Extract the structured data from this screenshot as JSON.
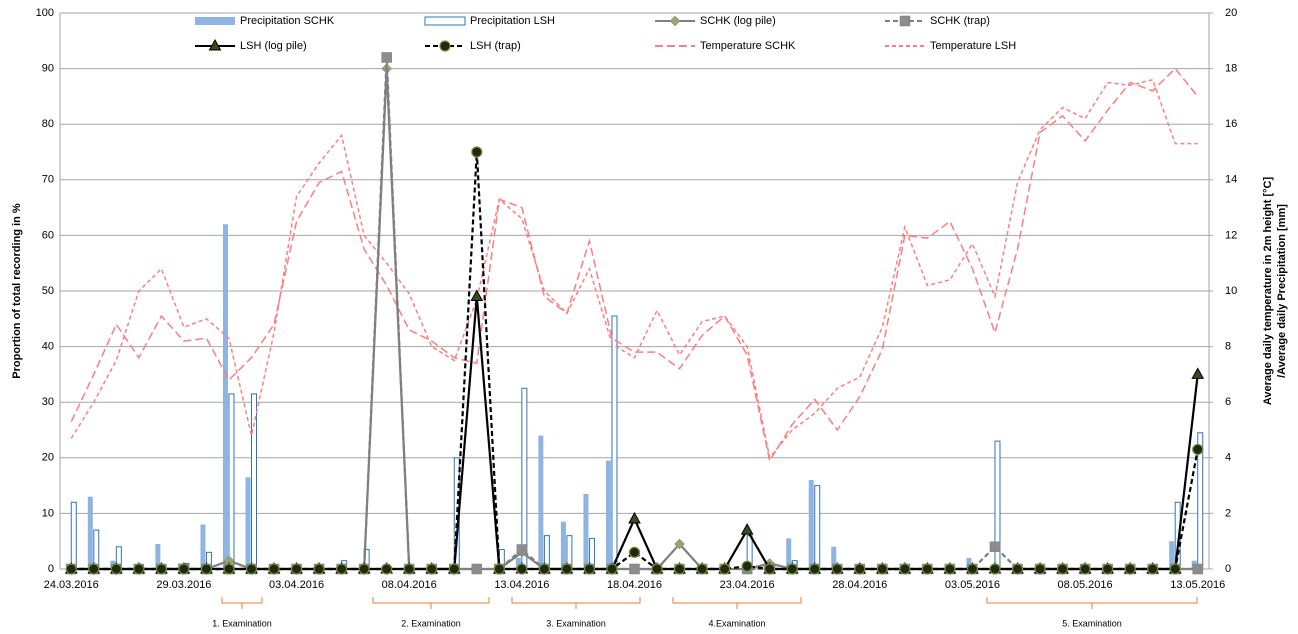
{
  "chart_data": {
    "type": "combo",
    "categories": [
      "24.03.2016",
      null,
      null,
      null,
      null,
      "29.03.2016",
      null,
      null,
      null,
      null,
      "03.04.2016",
      null,
      null,
      null,
      null,
      "08.04.2016",
      null,
      null,
      null,
      null,
      "13.04.2016",
      null,
      null,
      null,
      null,
      "18.04.2016",
      null,
      null,
      null,
      null,
      "23.04.2016",
      null,
      null,
      null,
      null,
      "28.04.2016",
      null,
      null,
      null,
      null,
      "03.05.2016",
      null,
      null,
      null,
      null,
      "08.05.2016",
      null,
      null,
      null,
      null,
      "13.05.2016"
    ],
    "ylabel": "Proportion of total recording in %",
    "y2label": [
      "Average daily temperature in 2m height [°C]",
      "/Average daily Precipitation [mm]"
    ],
    "ylim": [
      0,
      100
    ],
    "yticks": [
      0,
      10,
      20,
      30,
      40,
      50,
      60,
      70,
      80,
      90,
      100
    ],
    "y2lim": [
      0,
      20
    ],
    "y2ticks": [
      0,
      2,
      4,
      6,
      8,
      10,
      12,
      14,
      16,
      18,
      20
    ],
    "grid": true,
    "legend": "top",
    "annotations": [
      "1. Examination",
      "2. Examination",
      "3. Examination",
      "4.Examination",
      "5. Examination"
    ],
    "series": [
      {
        "name": "Precipitation SCHK",
        "type": "bar",
        "axis": "y2",
        "color": "#8db4e2",
        "fill": true,
        "values": [
          0,
          2.6,
          0.3,
          0,
          0.9,
          0.2,
          1.6,
          12.4,
          3.3,
          0,
          0,
          0,
          0,
          0,
          0,
          0,
          0,
          0,
          0,
          0,
          0.4,
          4.8,
          1.7,
          2.7,
          3.9,
          0,
          0,
          0,
          0,
          0,
          0,
          0.2,
          1.1,
          3.2,
          0.8,
          0,
          0,
          0,
          0,
          0,
          0.4,
          0,
          0,
          0,
          0,
          0,
          0,
          0,
          0,
          1.0,
          0.3
        ]
      },
      {
        "name": "Precipitation LSH",
        "type": "bar",
        "axis": "y2",
        "color": "#2e75b6",
        "fill": false,
        "values": [
          2.4,
          1.4,
          0.8,
          0,
          0,
          0.2,
          0.6,
          6.3,
          6.3,
          0,
          0,
          0,
          0.3,
          0.7,
          0,
          0,
          0,
          4.0,
          0,
          0.7,
          6.5,
          1.2,
          1.2,
          1.1,
          9.1,
          0,
          0,
          0,
          0,
          0,
          1.2,
          0.1,
          0.3,
          3.0,
          0,
          0,
          0,
          0,
          0,
          0,
          0,
          4.6,
          0,
          0,
          0,
          0,
          0,
          0,
          0,
          2.4,
          4.9
        ]
      },
      {
        "name": "SCHK (log pile)",
        "type": "line",
        "axis": "y",
        "color": "#7f7f7f",
        "marker": "diamond",
        "markerFill": "#9ea36e",
        "dash": false,
        "values": [
          0,
          0,
          0,
          0,
          0,
          0,
          0,
          1.5,
          0,
          0,
          0,
          0,
          0,
          0,
          90,
          0,
          0,
          0,
          0,
          0,
          3,
          0,
          0,
          0,
          0,
          0,
          0,
          4.5,
          0,
          0,
          0,
          1,
          0,
          0,
          0,
          0,
          0,
          0,
          0,
          0,
          0,
          0,
          0,
          0,
          0,
          0,
          0,
          0,
          0,
          0,
          0
        ]
      },
      {
        "name": "SCHK (trap)",
        "type": "line",
        "axis": "y",
        "color": "#7f7f7f",
        "marker": "square",
        "markerFill": "#8c8c8c",
        "dash": true,
        "values": [
          0,
          0,
          0,
          0,
          0,
          0,
          0,
          0,
          0,
          0,
          0,
          0,
          0,
          0,
          92,
          0,
          0,
          0,
          0,
          0,
          3.5,
          0,
          0,
          0,
          0,
          0,
          0,
          0,
          0,
          0,
          0,
          0,
          0,
          0,
          0,
          0,
          0,
          0,
          0,
          0,
          0,
          4,
          0,
          0,
          0,
          0,
          0,
          0,
          0,
          0,
          0
        ]
      },
      {
        "name": "LSH (log pile)",
        "type": "line",
        "axis": "y",
        "color": "#000000",
        "marker": "triangle",
        "markerFill": "#3d4a1e",
        "dash": false,
        "values": [
          0,
          0,
          0,
          0,
          0,
          0,
          0,
          0,
          0,
          0,
          0,
          0,
          0,
          0,
          0,
          0,
          0,
          0,
          49,
          0,
          0,
          0,
          0,
          0,
          0,
          9,
          0,
          0,
          0,
          0,
          7,
          0,
          0,
          0,
          0,
          0,
          0,
          0,
          0,
          0,
          0,
          0,
          0,
          0,
          0,
          0,
          0,
          0,
          0,
          0,
          35
        ]
      },
      {
        "name": "LSH (trap)",
        "type": "line",
        "axis": "y",
        "color": "#000000",
        "marker": "circle",
        "markerFill": "#1f2a12",
        "dash": true,
        "values": [
          0,
          0,
          0,
          0,
          0,
          0,
          0,
          0,
          0,
          0,
          0,
          0,
          0,
          0,
          0,
          0,
          0,
          0,
          75,
          0,
          0,
          0,
          0,
          0,
          0,
          3,
          0,
          0,
          0,
          0,
          0.5,
          0,
          0,
          0,
          0,
          0,
          0,
          0,
          0,
          0,
          0,
          0,
          0,
          0,
          0,
          0,
          0,
          0,
          0,
          0,
          21.5
        ]
      },
      {
        "name": "Temperature SCHK",
        "type": "line",
        "axis": "y2",
        "color": "#ff7c80",
        "dash": "long",
        "values": [
          5.3,
          7.0,
          8.8,
          7.6,
          9.1,
          8.2,
          8.3,
          6.8,
          7.6,
          8.8,
          12.5,
          13.9,
          14.3,
          11.5,
          10.2,
          8.6,
          8.2,
          7.6,
          7.4,
          13.3,
          13.0,
          9.8,
          9.2,
          11.8,
          8.3,
          7.8,
          7.8,
          7.2,
          8.4,
          9.1,
          7.7,
          3.9,
          5.2,
          6.1,
          5.0,
          6.2,
          7.9,
          12.0,
          11.9,
          12.5,
          10.8,
          8.5,
          11.5,
          15.7,
          16.3,
          15.4,
          16.5,
          17.5,
          17.2,
          18.0,
          17.0
        ]
      },
      {
        "name": "Temperature LSH",
        "type": "line",
        "axis": "y2",
        "color": "#ff7c80",
        "dash": "short",
        "values": [
          4.7,
          6.0,
          7.5,
          10.0,
          10.8,
          8.7,
          9.0,
          8.3,
          4.8,
          8.5,
          13.4,
          14.6,
          15.6,
          12.0,
          11.0,
          9.9,
          8.0,
          7.5,
          9.7,
          13.3,
          12.6,
          10.0,
          9.2,
          10.8,
          8.1,
          7.6,
          9.3,
          7.7,
          8.9,
          9.1,
          8.0,
          4.0,
          5.0,
          5.6,
          6.5,
          6.9,
          8.7,
          12.3,
          10.2,
          10.4,
          11.7,
          9.8,
          13.9,
          15.8,
          16.6,
          16.2,
          17.5,
          17.4,
          17.6,
          15.3,
          15.3
        ]
      }
    ]
  }
}
